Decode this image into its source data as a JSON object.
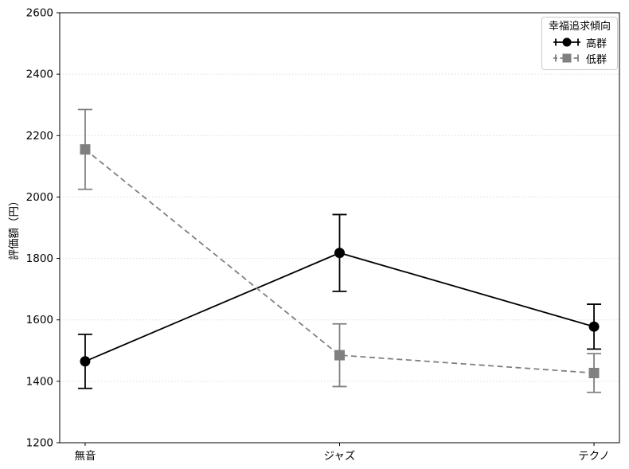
{
  "chart_data": {
    "type": "line",
    "title": "",
    "xlabel": "",
    "ylabel": "評価額（円）",
    "categories": [
      "無音",
      "ジャズ",
      "テクノ"
    ],
    "ylim": [
      1200,
      2600
    ],
    "yticks": [
      1200,
      1400,
      1600,
      1800,
      2000,
      2200,
      2400,
      2600
    ],
    "grid": "horizontal dotted",
    "background_color": "#ffffff",
    "legend": {
      "title": "幸福追求傾向",
      "position": "upper right"
    },
    "series": [
      {
        "name": "高群",
        "values": [
          1465,
          1818,
          1578
        ],
        "errors": [
          88,
          125,
          73
        ],
        "color": "#000000",
        "marker": "circle",
        "line_style": "solid"
      },
      {
        "name": "低群",
        "values": [
          2155,
          1485,
          1427
        ],
        "errors": [
          130,
          102,
          63
        ],
        "color": "#808080",
        "marker": "square",
        "line_style": "dashed"
      }
    ]
  }
}
